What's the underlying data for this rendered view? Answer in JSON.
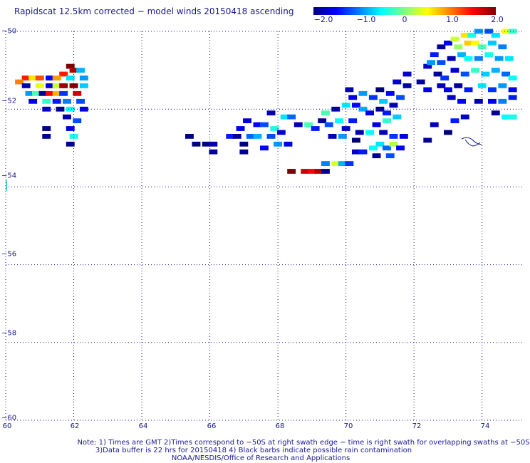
{
  "title": "Rapidscat 12.5km corrected − model winds 20150418 ascending",
  "colorbar": {
    "ticks": [
      "−2.0",
      "−1.0",
      "0",
      "1.0",
      "2.0"
    ],
    "min": -2.0,
    "max": 2.0,
    "colors": [
      "#00007f",
      "#0000ff",
      "#007fff",
      "#00ffff",
      "#7fff7f",
      "#ffff00",
      "#ff7f00",
      "#ff0000",
      "#7f0000"
    ]
  },
  "axes": {
    "x_ticks": [
      "60",
      "62",
      "64",
      "66",
      "68",
      "70",
      "72",
      "74"
    ],
    "y_ticks": [
      "−50",
      "−52",
      "−54",
      "−56",
      "−58",
      "−60"
    ],
    "x_range": [
      60,
      75.2
    ],
    "y_range": [
      -50,
      -60
    ],
    "grid": "dotted"
  },
  "notes": [
    "Note: 1) Times are GMT 2)Times correspond to −50S at right swath edge − time is right swath for overlapping swaths at −50S",
    "3)Data buffer is 22 hrs for 20150418 4) Black barbs indicate possible rain contamination",
    "NOAA/NESDIS/Office of Research and Applications"
  ],
  "chart_data": {
    "type": "heatmap",
    "cell_size_deg": [
      0.25,
      0.125
    ],
    "cells": [
      [
        60.6,
        -51.2,
        1.4
      ],
      [
        60.8,
        -51.2,
        0.6
      ],
      [
        61.0,
        -51.2,
        1.2
      ],
      [
        60.4,
        -51.3,
        1.0
      ],
      [
        60.6,
        -51.4,
        -1.8
      ],
      [
        61.0,
        -51.4,
        0.4
      ],
      [
        60.7,
        -51.6,
        -0.9
      ],
      [
        60.9,
        -51.6,
        -0.2
      ],
      [
        60.8,
        -51.8,
        -1.6
      ],
      [
        61.9,
        -50.9,
        2.0
      ],
      [
        62.0,
        -51.0,
        1.8
      ],
      [
        61.7,
        -51.1,
        1.4
      ],
      [
        62.2,
        -51.0,
        -0.8
      ],
      [
        61.3,
        -51.2,
        -1.5
      ],
      [
        61.5,
        -51.2,
        0.9
      ],
      [
        61.9,
        -51.2,
        -0.6
      ],
      [
        62.3,
        -51.2,
        -0.9
      ],
      [
        61.3,
        -51.4,
        -1.7
      ],
      [
        61.5,
        -51.4,
        0.3
      ],
      [
        61.7,
        -51.4,
        1.9
      ],
      [
        62.0,
        -51.4,
        2.0
      ],
      [
        62.3,
        -51.4,
        -0.7
      ],
      [
        61.1,
        -51.6,
        -1.9
      ],
      [
        61.3,
        -51.6,
        1.5
      ],
      [
        61.5,
        -51.6,
        0.8
      ],
      [
        61.7,
        -51.6,
        -1.3
      ],
      [
        62.1,
        -51.6,
        1.7
      ],
      [
        61.2,
        -51.8,
        -0.3
      ],
      [
        61.5,
        -51.8,
        -1.4
      ],
      [
        61.8,
        -51.8,
        -1.0
      ],
      [
        62.2,
        -51.8,
        -1.2
      ],
      [
        61.2,
        -52.0,
        -1.7
      ],
      [
        61.6,
        -52.0,
        -1.9
      ],
      [
        61.9,
        -52.0,
        -0.5
      ],
      [
        62.3,
        -52.0,
        -1.6
      ],
      [
        61.8,
        -52.2,
        -1.8
      ],
      [
        62.1,
        -52.3,
        -1.2
      ],
      [
        61.2,
        -52.5,
        -2.0
      ],
      [
        61.9,
        -52.5,
        -1.6
      ],
      [
        62.0,
        -52.7,
        -0.4
      ],
      [
        61.2,
        -52.7,
        -1.9
      ],
      [
        61.9,
        -52.9,
        -1.9
      ],
      [
        65.4,
        -52.7,
        -2.0
      ],
      [
        65.6,
        -52.9,
        -2.0
      ],
      [
        65.9,
        -52.9,
        -2.0
      ],
      [
        66.1,
        -52.9,
        -1.8
      ],
      [
        66.1,
        -53.1,
        -1.9
      ],
      [
        66.6,
        -52.7,
        -1.4
      ],
      [
        66.8,
        -52.7,
        -1.9
      ],
      [
        66.9,
        -52.5,
        -1.6
      ],
      [
        67.0,
        -52.9,
        -2.0
      ],
      [
        67.2,
        -52.7,
        -1.1
      ],
      [
        67.4,
        -52.7,
        -0.8
      ],
      [
        67.1,
        -52.3,
        -1.7
      ],
      [
        67.4,
        -52.4,
        -1.5
      ],
      [
        67.0,
        -53.1,
        -1.9
      ],
      [
        67.6,
        -53.0,
        -1.5
      ],
      [
        67.8,
        -52.7,
        -1.2
      ],
      [
        67.9,
        -52.5,
        -0.4
      ],
      [
        68.1,
        -52.6,
        -1.7
      ],
      [
        68.3,
        -52.9,
        -1.6
      ],
      [
        68.0,
        -52.9,
        -0.9
      ],
      [
        67.6,
        -52.4,
        -1.2
      ],
      [
        67.8,
        -52.1,
        -1.8
      ],
      [
        68.2,
        -52.2,
        -0.6
      ],
      [
        68.4,
        -52.2,
        -1.1
      ],
      [
        68.6,
        -52.4,
        -1.8
      ],
      [
        68.9,
        -52.4,
        -0.2
      ],
      [
        69.1,
        -52.5,
        -1.4
      ],
      [
        69.3,
        -52.3,
        -1.9
      ],
      [
        69.5,
        -52.4,
        -1.2
      ],
      [
        69.8,
        -52.3,
        -0.5
      ],
      [
        70.0,
        -52.5,
        -1.7
      ],
      [
        70.2,
        -52.3,
        -1.4
      ],
      [
        70.4,
        -52.6,
        -1.8
      ],
      [
        69.4,
        -52.1,
        -0.2
      ],
      [
        69.7,
        -52.0,
        -1.9
      ],
      [
        70.0,
        -51.9,
        -0.6
      ],
      [
        70.3,
        -51.9,
        -1.5
      ],
      [
        70.5,
        -52.0,
        -0.8
      ],
      [
        70.7,
        -52.1,
        -1.6
      ],
      [
        71.0,
        -52.0,
        -1.9
      ],
      [
        71.2,
        -52.1,
        -1.4
      ],
      [
        71.4,
        -51.9,
        -1.8
      ],
      [
        70.2,
        -51.7,
        -1.6
      ],
      [
        70.5,
        -51.6,
        -0.9
      ],
      [
        70.8,
        -51.7,
        -1.3
      ],
      [
        71.1,
        -51.8,
        -0.7
      ],
      [
        71.3,
        -51.6,
        -1.5
      ],
      [
        71.6,
        -51.7,
        -1.2
      ],
      [
        71.8,
        -51.4,
        -1.9
      ],
      [
        70.1,
        -51.5,
        -1.8
      ],
      [
        71.0,
        -51.5,
        -2.0
      ],
      [
        71.5,
        -51.3,
        -1.7
      ],
      [
        71.2,
        -52.3,
        -0.3
      ],
      [
        71.5,
        -52.2,
        -0.7
      ],
      [
        70.9,
        -52.4,
        -1.6
      ],
      [
        70.7,
        -52.6,
        -0.5
      ],
      [
        71.1,
        -52.6,
        -1.8
      ],
      [
        71.4,
        -52.7,
        -1.3
      ],
      [
        71.7,
        -52.7,
        -1.6
      ],
      [
        70.3,
        -52.8,
        -2.0
      ],
      [
        69.9,
        -52.7,
        -0.9
      ],
      [
        69.6,
        -52.7,
        -1.8
      ],
      [
        70.3,
        -53.1,
        -1.7
      ],
      [
        70.5,
        -53.1,
        -1.4
      ],
      [
        70.8,
        -53.0,
        -0.5
      ],
      [
        71.0,
        -52.9,
        -0.6
      ],
      [
        71.2,
        -53.0,
        -1.1
      ],
      [
        71.4,
        -52.9,
        0.2
      ],
      [
        71.6,
        -53.0,
        -1.5
      ],
      [
        70.9,
        -53.2,
        -1.9
      ],
      [
        71.3,
        -53.2,
        -1.2
      ],
      [
        69.7,
        -53.4,
        0.4
      ],
      [
        69.9,
        -53.4,
        -0.8
      ],
      [
        70.1,
        -53.4,
        -1.3
      ],
      [
        69.4,
        -53.4,
        -1.0
      ],
      [
        68.4,
        -53.6,
        2.0
      ],
      [
        68.8,
        -53.6,
        1.7
      ],
      [
        69.0,
        -53.6,
        1.5
      ],
      [
        69.2,
        -53.6,
        1.8
      ],
      [
        69.4,
        -53.6,
        -1.9
      ],
      [
        72.4,
        -50.9,
        -1.7
      ],
      [
        72.6,
        -50.6,
        -1.4
      ],
      [
        72.8,
        -50.4,
        -1.9
      ],
      [
        73.0,
        -50.3,
        -1.5
      ],
      [
        73.2,
        -50.2,
        0.3
      ],
      [
        73.5,
        -50.1,
        0.6
      ],
      [
        73.7,
        -50.1,
        -0.4
      ],
      [
        73.9,
        -50.0,
        -0.9
      ],
      [
        74.2,
        -50.0,
        -1.2
      ],
      [
        74.4,
        -50.1,
        -0.6
      ],
      [
        74.7,
        -50.0,
        0.5
      ],
      [
        74.9,
        -50.0,
        -0.3
      ],
      [
        73.3,
        -50.4,
        0.1
      ],
      [
        73.6,
        -50.3,
        0.7
      ],
      [
        73.8,
        -50.3,
        0.5
      ],
      [
        74.0,
        -50.4,
        -0.2
      ],
      [
        74.3,
        -50.3,
        -0.7
      ],
      [
        74.6,
        -50.4,
        -1.0
      ],
      [
        72.5,
        -50.8,
        -0.9
      ],
      [
        72.8,
        -50.8,
        -1.2
      ],
      [
        73.1,
        -50.7,
        -1.8
      ],
      [
        73.4,
        -50.6,
        -0.8
      ],
      [
        73.6,
        -50.7,
        -0.5
      ],
      [
        73.9,
        -50.7,
        -1.0
      ],
      [
        74.2,
        -50.6,
        -0.4
      ],
      [
        74.5,
        -50.7,
        -0.9
      ],
      [
        74.8,
        -50.7,
        -0.6
      ],
      [
        72.7,
        -51.1,
        -1.9
      ],
      [
        72.9,
        -51.2,
        -1.3
      ],
      [
        73.2,
        -51.0,
        -1.7
      ],
      [
        73.5,
        -51.1,
        -1.2
      ],
      [
        73.8,
        -51.0,
        -0.3
      ],
      [
        74.1,
        -51.1,
        -0.7
      ],
      [
        74.4,
        -51.0,
        -0.8
      ],
      [
        74.7,
        -51.1,
        -1.1
      ],
      [
        74.9,
        -51.2,
        -0.5
      ],
      [
        72.8,
        -51.4,
        -1.8
      ],
      [
        73.0,
        -51.5,
        -1.6
      ],
      [
        73.3,
        -51.4,
        -1.9
      ],
      [
        73.6,
        -51.5,
        -1.4
      ],
      [
        74.0,
        -51.4,
        -0.6
      ],
      [
        74.3,
        -51.5,
        -1.3
      ],
      [
        74.6,
        -51.4,
        -0.9
      ],
      [
        74.9,
        -51.5,
        -1.5
      ],
      [
        73.1,
        -51.7,
        -1.7
      ],
      [
        73.4,
        -51.8,
        -1.5
      ],
      [
        73.9,
        -51.8,
        -1.8
      ],
      [
        74.3,
        -51.8,
        -1.6
      ],
      [
        74.6,
        -51.8,
        -1.0
      ],
      [
        74.9,
        -51.7,
        -1.4
      ],
      [
        72.2,
        -51.3,
        -1.9
      ],
      [
        71.8,
        -51.1,
        -1.7
      ],
      [
        72.4,
        -51.5,
        -1.6
      ],
      [
        74.4,
        -52.1,
        -1.9
      ],
      [
        74.7,
        -52.2,
        -0.5
      ],
      [
        74.9,
        -52.2,
        -0.4
      ],
      [
        73.5,
        -52.2,
        -1.7
      ],
      [
        73.2,
        -52.3,
        -1.4
      ],
      [
        73.0,
        -52.6,
        -2.0
      ],
      [
        72.6,
        -52.4,
        -1.8
      ],
      [
        72.4,
        -52.8,
        -1.9
      ]
    ]
  }
}
